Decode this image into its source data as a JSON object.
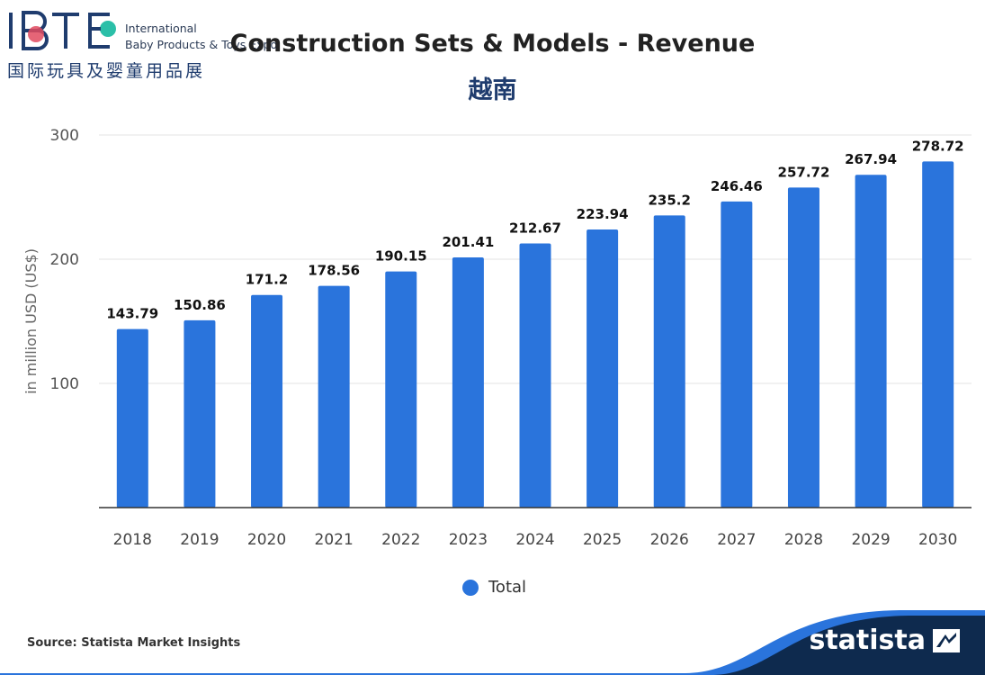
{
  "logo": {
    "letters": "IBTE",
    "line1": "International",
    "line2": "Baby Products & Toys Expo",
    "cn": "国际玩具及婴童用品展"
  },
  "header": {
    "title": "Construction Sets & Models - Revenue",
    "subtitle": "越南"
  },
  "footer": {
    "source": "Source: Statista Market Insights",
    "brand": "statista"
  },
  "colors": {
    "bar": "#2a74dc",
    "title_blue": "#1f3c6e",
    "footer_navy": "#0e2a4e"
  },
  "chart_data": {
    "type": "bar",
    "title": "Construction Sets & Models - Revenue",
    "subtitle": "越南",
    "ylabel": "in million USD (US$)",
    "xlabel": "",
    "ylim": [
      0,
      300
    ],
    "yticks": [
      100,
      200,
      300
    ],
    "grid": true,
    "legend_position": "bottom-center",
    "categories": [
      "2018",
      "2019",
      "2020",
      "2021",
      "2022",
      "2023",
      "2024",
      "2025",
      "2026",
      "2027",
      "2028",
      "2029",
      "2030"
    ],
    "series": [
      {
        "name": "Total",
        "values": [
          143.79,
          150.86,
          171.2,
          178.56,
          190.15,
          201.41,
          212.67,
          223.94,
          235.2,
          246.46,
          257.72,
          267.94,
          278.72
        ]
      }
    ]
  }
}
